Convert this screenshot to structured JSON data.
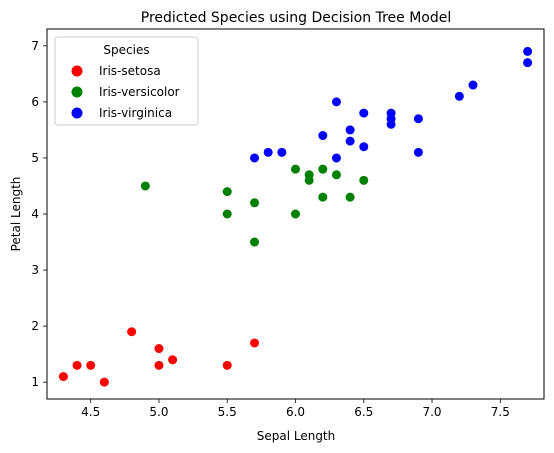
{
  "chart_data": {
    "type": "scatter",
    "title": "Predicted Species using Decision Tree Model",
    "xlabel": "Sepal Length",
    "ylabel": "Petal Length",
    "xlim": [
      4.18,
      7.82
    ],
    "ylim": [
      0.7,
      7.3
    ],
    "xticks": [
      "4.5",
      "5.0",
      "5.5",
      "6.0",
      "6.5",
      "7.0",
      "7.5"
    ],
    "yticks": [
      "1",
      "2",
      "3",
      "4",
      "5",
      "6",
      "7"
    ],
    "grid": false,
    "legend": {
      "title": "Species",
      "placement": "upper-left"
    },
    "series": [
      {
        "name": "Iris-setosa",
        "color": "#ff0000",
        "points": [
          [
            4.3,
            1.1
          ],
          [
            4.4,
            1.3
          ],
          [
            4.5,
            1.3
          ],
          [
            4.6,
            1.0
          ],
          [
            4.8,
            1.9
          ],
          [
            5.0,
            1.6
          ],
          [
            5.0,
            1.3
          ],
          [
            5.1,
            1.4
          ],
          [
            5.5,
            1.3
          ],
          [
            5.7,
            1.7
          ]
        ]
      },
      {
        "name": "Iris-versicolor",
        "color": "#008000",
        "points": [
          [
            4.9,
            4.5
          ],
          [
            5.5,
            4.4
          ],
          [
            5.5,
            4.0
          ],
          [
            5.7,
            4.2
          ],
          [
            5.7,
            3.5
          ],
          [
            6.0,
            4.8
          ],
          [
            6.0,
            4.0
          ],
          [
            6.1,
            4.7
          ],
          [
            6.1,
            4.6
          ],
          [
            6.2,
            4.8
          ],
          [
            6.2,
            4.3
          ],
          [
            6.3,
            4.7
          ],
          [
            6.4,
            4.3
          ],
          [
            6.5,
            4.6
          ]
        ]
      },
      {
        "name": "Iris-virginica",
        "color": "#0000ff",
        "points": [
          [
            5.7,
            5.0
          ],
          [
            5.8,
            5.1
          ],
          [
            5.9,
            5.1
          ],
          [
            6.2,
            5.4
          ],
          [
            6.3,
            6.0
          ],
          [
            6.3,
            5.0
          ],
          [
            6.4,
            5.5
          ],
          [
            6.4,
            5.3
          ],
          [
            6.5,
            5.8
          ],
          [
            6.5,
            5.2
          ],
          [
            6.7,
            5.8
          ],
          [
            6.7,
            5.7
          ],
          [
            6.7,
            5.6
          ],
          [
            6.9,
            5.7
          ],
          [
            6.9,
            5.1
          ],
          [
            7.2,
            6.1
          ],
          [
            7.3,
            6.3
          ],
          [
            7.7,
            6.9
          ],
          [
            7.7,
            6.7
          ]
        ]
      }
    ]
  }
}
